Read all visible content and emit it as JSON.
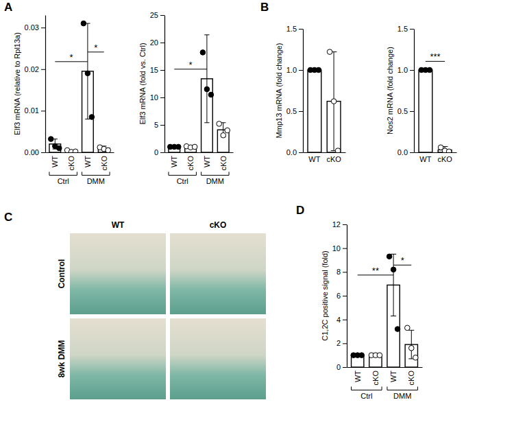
{
  "panel_labels": [
    "A",
    "B",
    "C",
    "D"
  ],
  "image_panel": {
    "columns": [
      "WT",
      "cKO"
    ],
    "rows": [
      "Control",
      "8wk DMM"
    ]
  },
  "chart_data": [
    {
      "type": "bar",
      "y_label": "Elf3 mRNA (relative to Rpl13a)",
      "categories": [
        "WT",
        "cKO",
        "WT",
        "cKO"
      ],
      "groups": [
        "Ctrl",
        "DMM"
      ],
      "values": [
        0.002,
        0.0003,
        0.0195,
        0.001
      ],
      "errors": [
        0.0012,
        0.0002,
        0.0115,
        0.0005
      ],
      "points": [
        [
          0.0032,
          0.0015,
          0.001
        ],
        [
          0.0005,
          0.0001,
          0.0002
        ],
        [
          0.031,
          0.019,
          0.0085
        ],
        [
          0.0012,
          0.0008,
          0.0005
        ]
      ],
      "colors": [
        "#000000",
        "#ffffff",
        "#000000",
        "#ffffff"
      ],
      "ylim": [
        0,
        0.033
      ],
      "yticks": [
        {
          "value": 0,
          "label": "0.00"
        },
        {
          "value": 0.01,
          "label": "0.01"
        },
        {
          "value": 0.02,
          "label": "0.02"
        },
        {
          "value": 0.03,
          "label": "0.03"
        }
      ],
      "significance": [
        {
          "from": 0,
          "to": 2,
          "label": "*"
        },
        {
          "from": 2,
          "to": 3,
          "label": "*"
        }
      ]
    },
    {
      "type": "bar",
      "y_label": "Elf3 mRNA (fold vs. Ctrl)",
      "categories": [
        "WT",
        "cKO",
        "WT",
        "cKO"
      ],
      "groups": [
        "Ctrl",
        "DMM"
      ],
      "values": [
        1,
        1,
        13.4,
        4.1
      ],
      "errors": [
        0.1,
        0.2,
        8,
        1.3
      ],
      "points": [
        [
          1,
          1,
          1
        ],
        [
          1.1,
          0.9,
          1.0
        ],
        [
          18.2,
          11.5,
          10.5
        ],
        [
          5.2,
          3.1,
          4.0
        ]
      ],
      "colors": [
        "#000000",
        "#ffffff",
        "#000000",
        "#ffffff"
      ],
      "ylim": [
        0,
        25
      ],
      "yticks": [
        0,
        5,
        10,
        15,
        20,
        25
      ],
      "significance": [
        {
          "from": 0,
          "to": 2,
          "label": "*"
        }
      ]
    },
    {
      "type": "bar",
      "y_label": "Mmp13 mRNA (fold change)",
      "categories": [
        "WT",
        "cKO"
      ],
      "values": [
        1,
        0.62
      ],
      "errors": [
        0,
        0.6
      ],
      "points": [
        [
          1,
          1,
          1
        ],
        [
          1.22,
          0.62,
          0.02
        ]
      ],
      "colors": [
        "#000000",
        "#ffffff"
      ],
      "ylim": [
        0,
        1.5
      ],
      "yticks": [
        {
          "value": 0,
          "label": "0.0"
        },
        {
          "value": 0.5,
          "label": "0.5"
        },
        {
          "value": 1,
          "label": "1.0"
        },
        {
          "value": 1.5,
          "label": "1.5"
        }
      ]
    },
    {
      "type": "bar",
      "y_label": "Nos2 mRNA (fold change)",
      "categories": [
        "WT",
        "cKO"
      ],
      "values": [
        1,
        0.03
      ],
      "errors": [
        0,
        0.04
      ],
      "points": [
        [
          1,
          1,
          1
        ],
        [
          0.06,
          0.02,
          0.01
        ]
      ],
      "colors": [
        "#000000",
        "#ffffff"
      ],
      "ylim": [
        0,
        1.5
      ],
      "yticks": [
        {
          "value": 0,
          "label": "0.0"
        },
        {
          "value": 0.5,
          "label": "0.5"
        },
        {
          "value": 1,
          "label": "1.0"
        },
        {
          "value": 1.5,
          "label": "1.5"
        }
      ],
      "significance": [
        {
          "from": 0,
          "to": 1,
          "label": "***"
        }
      ]
    },
    {
      "type": "bar",
      "y_label": "C1,2C positive signal (fold)",
      "categories": [
        "WT",
        "cKO",
        "WT",
        "cKO"
      ],
      "groups": [
        "Ctrl",
        "DMM"
      ],
      "values": [
        1,
        1,
        6.9,
        1.9
      ],
      "errors": [
        0.05,
        0.05,
        2.6,
        1.2
      ],
      "points": [
        [
          1,
          1,
          1
        ],
        [
          1,
          1,
          1
        ],
        [
          9.3,
          8.2,
          3.2
        ],
        [
          3.3,
          1.6,
          0.8
        ]
      ],
      "colors": [
        "#000000",
        "#ffffff",
        "#000000",
        "#ffffff"
      ],
      "ylim": [
        0,
        12
      ],
      "yticks": [
        0,
        2,
        4,
        6,
        8,
        10,
        12
      ],
      "significance": [
        {
          "from": 0,
          "to": 2,
          "label": "**"
        },
        {
          "from": 2,
          "to": 3,
          "label": "*"
        }
      ]
    }
  ]
}
